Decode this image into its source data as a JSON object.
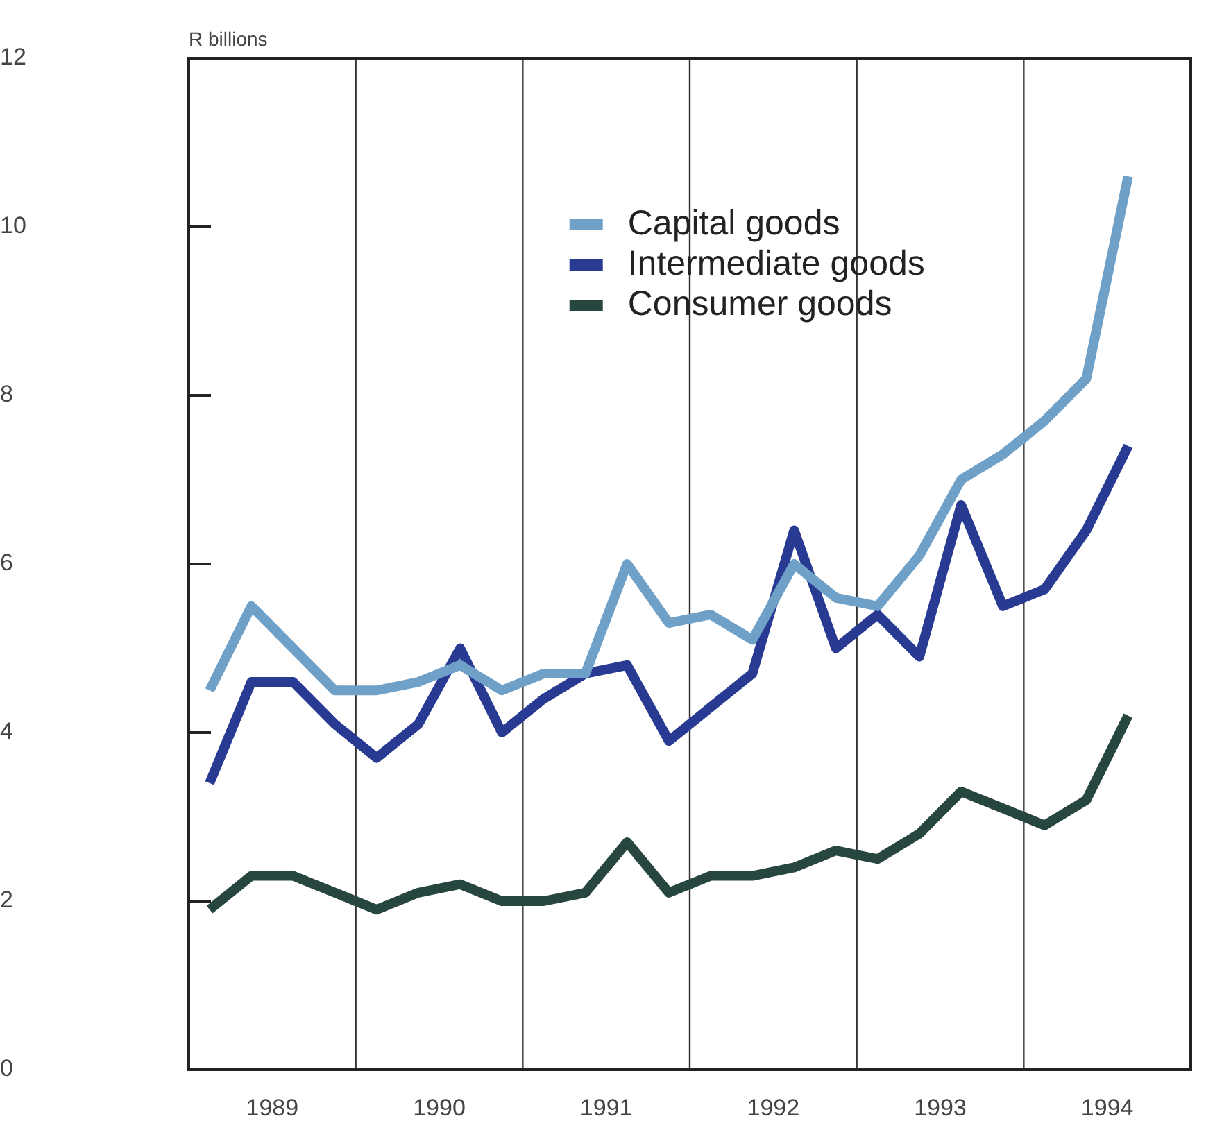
{
  "chart_data": {
    "type": "line",
    "ylabel": "R billions",
    "x": [
      1989.125,
      1989.375,
      1989.625,
      1989.875,
      1990.125,
      1990.375,
      1990.625,
      1990.875,
      1991.125,
      1991.375,
      1991.625,
      1991.875,
      1992.125,
      1992.375,
      1992.625,
      1992.875,
      1993.125,
      1993.375,
      1993.625,
      1993.875,
      1994.125,
      1994.375,
      1994.625
    ],
    "series": [
      {
        "name": "Capital goods",
        "color": "#6fa0c8",
        "values": [
          4.5,
          5.5,
          5.0,
          4.5,
          4.5,
          4.6,
          4.8,
          4.5,
          4.7,
          4.7,
          6.0,
          5.3,
          5.4,
          5.1,
          6.0,
          5.6,
          5.5,
          6.1,
          7.0,
          7.3,
          7.7,
          8.2,
          10.6
        ]
      },
      {
        "name": "Intermediate goods",
        "color": "#283a92",
        "values": [
          3.4,
          4.6,
          4.6,
          4.1,
          3.7,
          4.1,
          5.0,
          4.0,
          4.4,
          4.7,
          4.8,
          3.9,
          4.3,
          4.7,
          6.4,
          5.0,
          5.4,
          4.9,
          6.7,
          5.5,
          5.7,
          6.4,
          7.4
        ]
      },
      {
        "name": "Consumer goods",
        "color": "#27463f",
        "values": [
          1.9,
          2.3,
          2.3,
          2.1,
          1.9,
          2.1,
          2.2,
          2.0,
          2.0,
          2.1,
          2.7,
          2.1,
          2.3,
          2.3,
          2.4,
          2.6,
          2.5,
          2.8,
          3.3,
          3.1,
          2.9,
          3.2,
          4.2
        ]
      }
    ],
    "xlim": [
      1989,
      1995
    ],
    "xticks": [
      {
        "value": 1989.5,
        "label": "1989"
      },
      {
        "value": 1990.5,
        "label": "1990"
      },
      {
        "value": 1991.5,
        "label": "1991"
      },
      {
        "value": 1992.5,
        "label": "1992"
      },
      {
        "value": 1993.5,
        "label": "1993"
      },
      {
        "value": 1994.5,
        "label": "1994"
      }
    ],
    "ylim": [
      0,
      12
    ],
    "yticks": [
      0,
      2,
      4,
      6,
      8,
      10,
      12
    ],
    "ref_lines": [
      {
        "axis": "x",
        "value": 1990,
        "color": "#333333"
      },
      {
        "axis": "x",
        "value": 1991,
        "color": "#333333"
      },
      {
        "axis": "x",
        "value": 1992,
        "color": "#333333"
      },
      {
        "axis": "x",
        "value": 1993,
        "color": "#333333"
      },
      {
        "axis": "x",
        "value": 1994,
        "color": "#333333"
      }
    ],
    "legend": "top",
    "marker": "none",
    "line_style": "solid",
    "grid": false
  }
}
